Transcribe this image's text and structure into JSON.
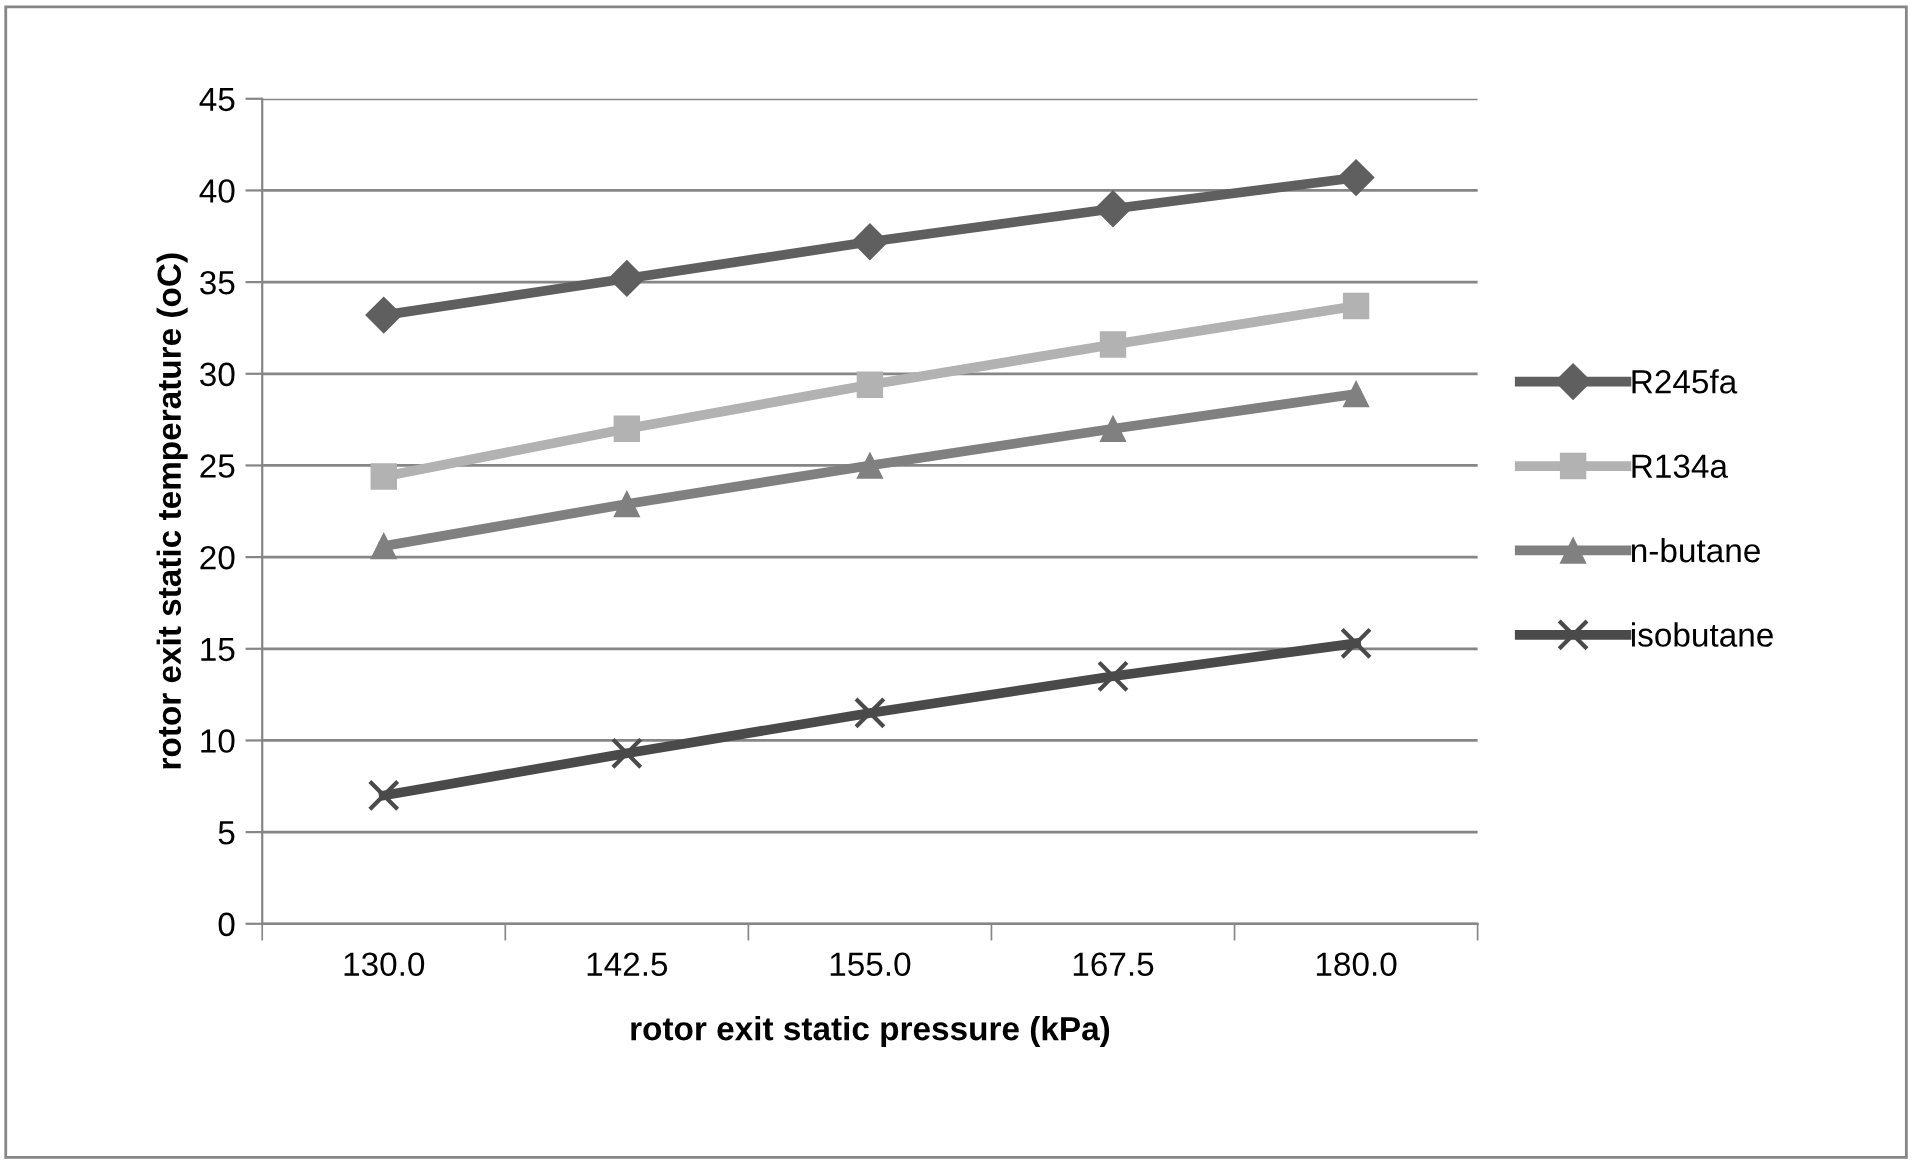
{
  "chart_data": {
    "type": "line",
    "xlabel": "rotor exit static pressure (kPa)",
    "ylabel": "rotor exit static temperature (oC)",
    "categories": [
      "130.0",
      "142.5",
      "155.0",
      "167.5",
      "180.0"
    ],
    "series": [
      {
        "name": "R245fa",
        "color": "#5f5f5f",
        "marker": "diamond",
        "values": [
          33.2,
          35.2,
          37.2,
          39.0,
          40.7
        ]
      },
      {
        "name": "R134a",
        "color": "#b2b2b2",
        "marker": "square",
        "values": [
          24.4,
          27.0,
          29.4,
          31.6,
          33.7
        ]
      },
      {
        "name": "n-butane",
        "color": "#808080",
        "marker": "triangle",
        "values": [
          20.6,
          22.9,
          25.0,
          27.0,
          28.9
        ]
      },
      {
        "name": "isobutane",
        "color": "#4a4a4a",
        "marker": "cross",
        "values": [
          7.0,
          9.3,
          11.5,
          13.5,
          15.3
        ]
      }
    ],
    "ylim": [
      0,
      45
    ],
    "yticks": [
      0,
      5,
      10,
      15,
      20,
      25,
      30,
      35,
      40,
      45
    ],
    "grid": "y",
    "legend": "right",
    "line_style": "solid"
  }
}
